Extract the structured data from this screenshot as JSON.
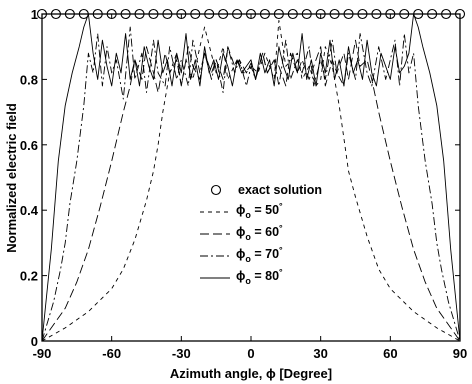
{
  "chart_data": {
    "type": "line",
    "xlabel": "Azimuth angle, ϕ [Degree]",
    "ylabel": "Normalized electric field",
    "xlim": [
      -90,
      90
    ],
    "ylim": [
      0,
      1
    ],
    "xticks": [
      -90,
      -60,
      -30,
      0,
      30,
      60,
      90
    ],
    "yticks": [
      0,
      0.2,
      0.4,
      0.6,
      0.8,
      1
    ],
    "xtick_labels": [
      "-90",
      "-60",
      "-30",
      "0",
      "30",
      "60",
      "90"
    ],
    "ytick_labels": [
      "0",
      "0.2",
      "0.4",
      "0.6",
      "0.8",
      "1"
    ],
    "grid": false,
    "legend_placement": "center-left",
    "series": [
      {
        "name": "exact solution",
        "style": "circles",
        "x": [
          -90,
          -84,
          -78,
          -72,
          -66,
          -60,
          -54,
          -48,
          -42,
          -36,
          -30,
          -24,
          -18,
          -12,
          -6,
          0,
          6,
          12,
          18,
          24,
          30,
          36,
          42,
          48,
          54,
          60,
          66,
          72,
          78,
          84,
          90
        ],
        "y": [
          1,
          1,
          1,
          1,
          1,
          1,
          1,
          1,
          1,
          1,
          1,
          1,
          1,
          1,
          1,
          1,
          1,
          1,
          1,
          1,
          1,
          1,
          1,
          1,
          1,
          1,
          1,
          1,
          1,
          1,
          1
        ]
      },
      {
        "name": "ϕo = 50°",
        "style": "short-dash",
        "x": [
          -90,
          -80,
          -70,
          -60,
          -55,
          -50,
          -45,
          -42,
          -40,
          -38,
          -35,
          -32,
          -30,
          -28,
          -25,
          -22,
          -20,
          -15,
          -12,
          -10,
          -6,
          -3,
          0,
          3,
          6,
          10,
          12,
          15,
          20,
          22,
          25,
          28,
          30,
          32,
          35,
          38,
          40,
          42,
          45,
          50,
          55,
          60,
          70,
          80,
          90
        ],
        "y": [
          0,
          0.04,
          0.09,
          0.16,
          0.22,
          0.31,
          0.43,
          0.52,
          0.6,
          0.7,
          0.82,
          0.88,
          0.78,
          0.86,
          0.8,
          0.9,
          0.96,
          0.82,
          0.9,
          0.8,
          0.86,
          0.82,
          0.84,
          0.82,
          0.88,
          0.8,
          0.98,
          0.84,
          0.88,
          0.8,
          0.84,
          0.78,
          0.8,
          0.9,
          0.84,
          0.72,
          0.62,
          0.52,
          0.44,
          0.32,
          0.22,
          0.16,
          0.09,
          0.04,
          0
        ]
      },
      {
        "name": "ϕo = 60°",
        "style": "long-dash",
        "x": [
          -90,
          -85,
          -80,
          -75,
          -70,
          -65,
          -60,
          -55,
          -52,
          -50,
          -47,
          -45,
          -42,
          -40,
          -37,
          -35,
          -32,
          -30,
          -27,
          -25,
          -22,
          -20,
          -17,
          -15,
          -12,
          -10,
          -7,
          -5,
          -2,
          0,
          2,
          5,
          7,
          10,
          12,
          15,
          17,
          20,
          22,
          25,
          27,
          30,
          32,
          35,
          37,
          40,
          42,
          45,
          47,
          50,
          52,
          55,
          60,
          65,
          70,
          75,
          80,
          85,
          90
        ],
        "y": [
          0,
          0.05,
          0.1,
          0.18,
          0.28,
          0.41,
          0.55,
          0.7,
          0.78,
          0.86,
          0.8,
          0.9,
          0.82,
          0.76,
          0.88,
          0.82,
          0.86,
          0.78,
          0.9,
          0.84,
          0.8,
          0.88,
          0.82,
          0.86,
          0.8,
          0.9,
          0.84,
          0.86,
          0.82,
          0.85,
          0.8,
          0.88,
          0.82,
          0.86,
          0.84,
          0.78,
          0.88,
          0.82,
          0.86,
          0.8,
          0.84,
          0.9,
          0.78,
          0.86,
          0.82,
          0.88,
          0.8,
          0.92,
          0.84,
          0.86,
          0.8,
          0.7,
          0.55,
          0.41,
          0.28,
          0.18,
          0.1,
          0.05,
          0
        ]
      },
      {
        "name": "ϕo = 70°",
        "style": "dash-dot",
        "x": [
          -90,
          -85,
          -82,
          -80,
          -78,
          -75,
          -72,
          -70,
          -68,
          -66,
          -64,
          -62,
          -60,
          -58,
          -55,
          -52,
          -50,
          -47,
          -45,
          -42,
          -40,
          -37,
          -35,
          -32,
          -30,
          -27,
          -25,
          -22,
          -20,
          -17,
          -15,
          -12,
          -10,
          -7,
          -5,
          -2,
          0,
          2,
          5,
          7,
          10,
          12,
          15,
          17,
          20,
          22,
          25,
          27,
          30,
          32,
          35,
          37,
          40,
          42,
          45,
          47,
          50,
          52,
          55,
          58,
          60,
          62,
          64,
          66,
          68,
          70,
          72,
          75,
          78,
          80,
          82,
          85,
          90
        ],
        "y": [
          0,
          0.12,
          0.22,
          0.3,
          0.42,
          0.55,
          0.72,
          0.88,
          0.82,
          0.94,
          0.78,
          0.9,
          0.82,
          0.86,
          0.74,
          0.96,
          0.8,
          0.88,
          0.76,
          0.92,
          0.82,
          0.78,
          0.9,
          0.8,
          0.86,
          0.78,
          0.92,
          0.82,
          0.88,
          0.8,
          0.86,
          0.76,
          0.9,
          0.82,
          0.86,
          0.78,
          0.84,
          0.8,
          0.88,
          0.82,
          0.86,
          0.78,
          0.92,
          0.8,
          0.86,
          0.82,
          0.9,
          0.78,
          0.86,
          0.8,
          0.92,
          0.82,
          0.78,
          0.88,
          0.8,
          0.94,
          0.82,
          0.78,
          0.9,
          0.8,
          0.86,
          0.92,
          0.78,
          0.94,
          0.82,
          0.88,
          0.72,
          0.55,
          0.42,
          0.3,
          0.22,
          0.12,
          0
        ]
      },
      {
        "name": "ϕo = 80°",
        "style": "solid",
        "x": [
          -90,
          -86,
          -83,
          -80,
          -77,
          -74,
          -72,
          -70,
          -68,
          -66,
          -64,
          -62,
          -60,
          -58,
          -56,
          -54,
          -52,
          -50,
          -48,
          -46,
          -44,
          -42,
          -40,
          -38,
          -36,
          -34,
          -32,
          -30,
          -28,
          -26,
          -24,
          -22,
          -20,
          -18,
          -16,
          -14,
          -12,
          -10,
          -8,
          -6,
          -4,
          -2,
          0,
          2,
          4,
          6,
          8,
          10,
          12,
          14,
          16,
          18,
          20,
          22,
          24,
          26,
          28,
          30,
          32,
          34,
          36,
          38,
          40,
          42,
          44,
          46,
          48,
          50,
          52,
          54,
          56,
          58,
          60,
          62,
          64,
          66,
          68,
          70,
          72,
          74,
          77,
          80,
          83,
          86,
          90
        ],
        "y": [
          0,
          0.28,
          0.55,
          0.72,
          0.82,
          0.9,
          0.96,
          1.0,
          0.88,
          0.8,
          0.92,
          0.84,
          0.78,
          0.88,
          0.82,
          0.94,
          0.8,
          0.86,
          0.78,
          0.9,
          0.84,
          0.8,
          0.92,
          0.82,
          0.86,
          0.78,
          0.88,
          0.82,
          0.94,
          0.8,
          0.86,
          0.78,
          0.9,
          0.82,
          0.86,
          0.8,
          0.88,
          0.84,
          0.78,
          0.86,
          0.82,
          0.84,
          0.86,
          0.8,
          0.88,
          0.82,
          0.86,
          0.78,
          0.9,
          0.84,
          0.8,
          0.88,
          0.82,
          0.94,
          0.8,
          0.86,
          0.78,
          0.88,
          0.82,
          0.92,
          0.8,
          0.86,
          0.78,
          0.9,
          0.82,
          0.86,
          0.8,
          0.92,
          0.82,
          0.78,
          0.88,
          0.84,
          0.8,
          0.9,
          0.82,
          0.84,
          0.88,
          1.0,
          0.96,
          0.9,
          0.82,
          0.72,
          0.55,
          0.28,
          0
        ]
      }
    ]
  },
  "legend": {
    "exact": "exact solution",
    "s50": {
      "phi": "ϕ",
      "sub": "o",
      "rest": " = 50",
      "deg": "°"
    },
    "s60": {
      "phi": "ϕ",
      "sub": "o",
      "rest": " = 60",
      "deg": "°"
    },
    "s70": {
      "phi": "ϕ",
      "sub": "o",
      "rest": " = 70",
      "deg": "°"
    },
    "s80": {
      "phi": "ϕ",
      "sub": "o",
      "rest": " = 80",
      "deg": "°"
    }
  }
}
